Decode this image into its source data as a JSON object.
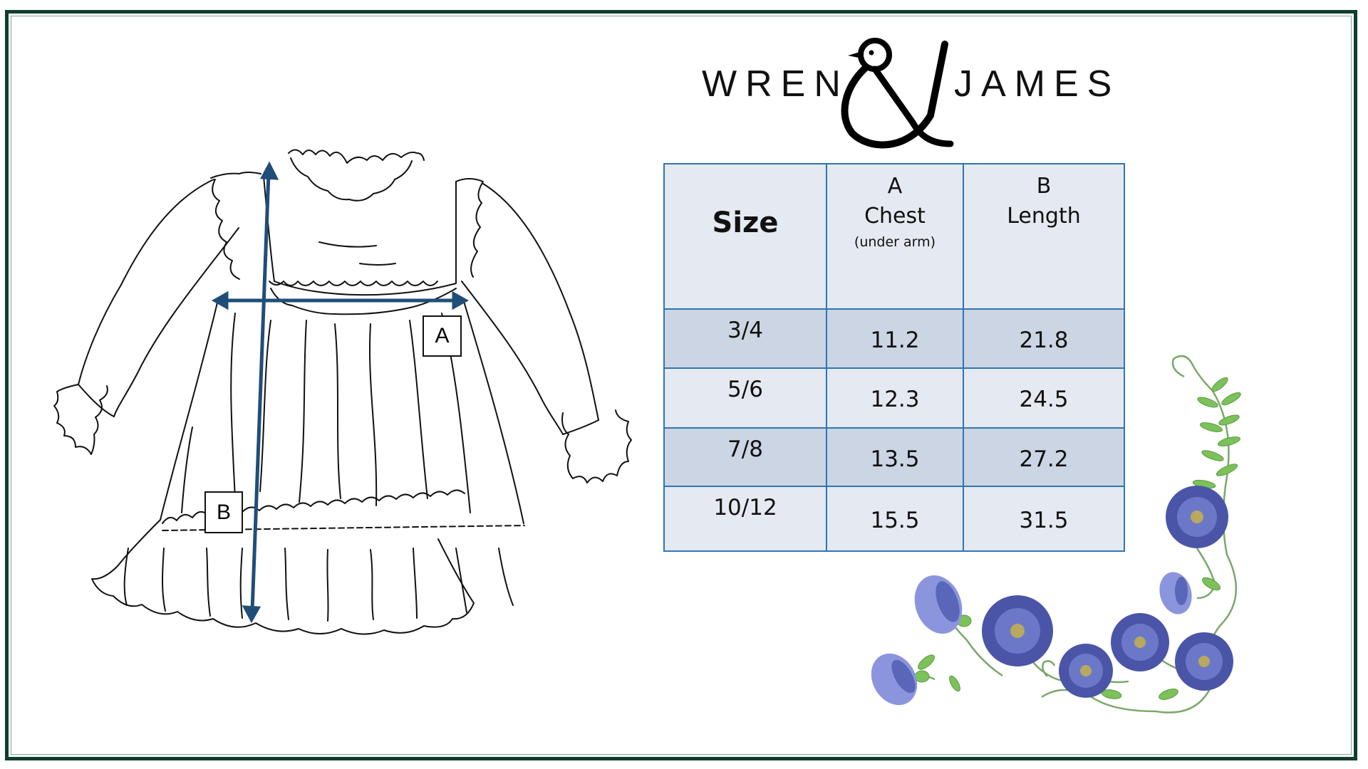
{
  "brand": {
    "left_word": "WREN",
    "right_word": "JAMES",
    "ampersand": "&"
  },
  "diagram": {
    "label_a": "A",
    "label_b": "B",
    "arrow_color": "#1f4e79"
  },
  "size_chart": {
    "headers": {
      "size": "Size",
      "a_letter": "A",
      "a_name": "Chest",
      "a_note": "(under arm)",
      "b_letter": "B",
      "b_name": "Length"
    },
    "rows": [
      {
        "size": "3/4",
        "chest": "11.2",
        "length": "21.8"
      },
      {
        "size": "5/6",
        "chest": "12.3",
        "length": "24.5"
      },
      {
        "size": "7/8",
        "chest": "13.5",
        "length": "27.2"
      },
      {
        "size": "10/12",
        "chest": "15.5",
        "length": "31.5"
      }
    ],
    "colors": {
      "border": "#2e75b6",
      "light_row": "#e5e9f1",
      "dark_row": "#cbd5e3"
    }
  },
  "colors": {
    "frame": "#0f3d2e",
    "flower": "#4a55a8",
    "leaf": "#6ab04c"
  }
}
